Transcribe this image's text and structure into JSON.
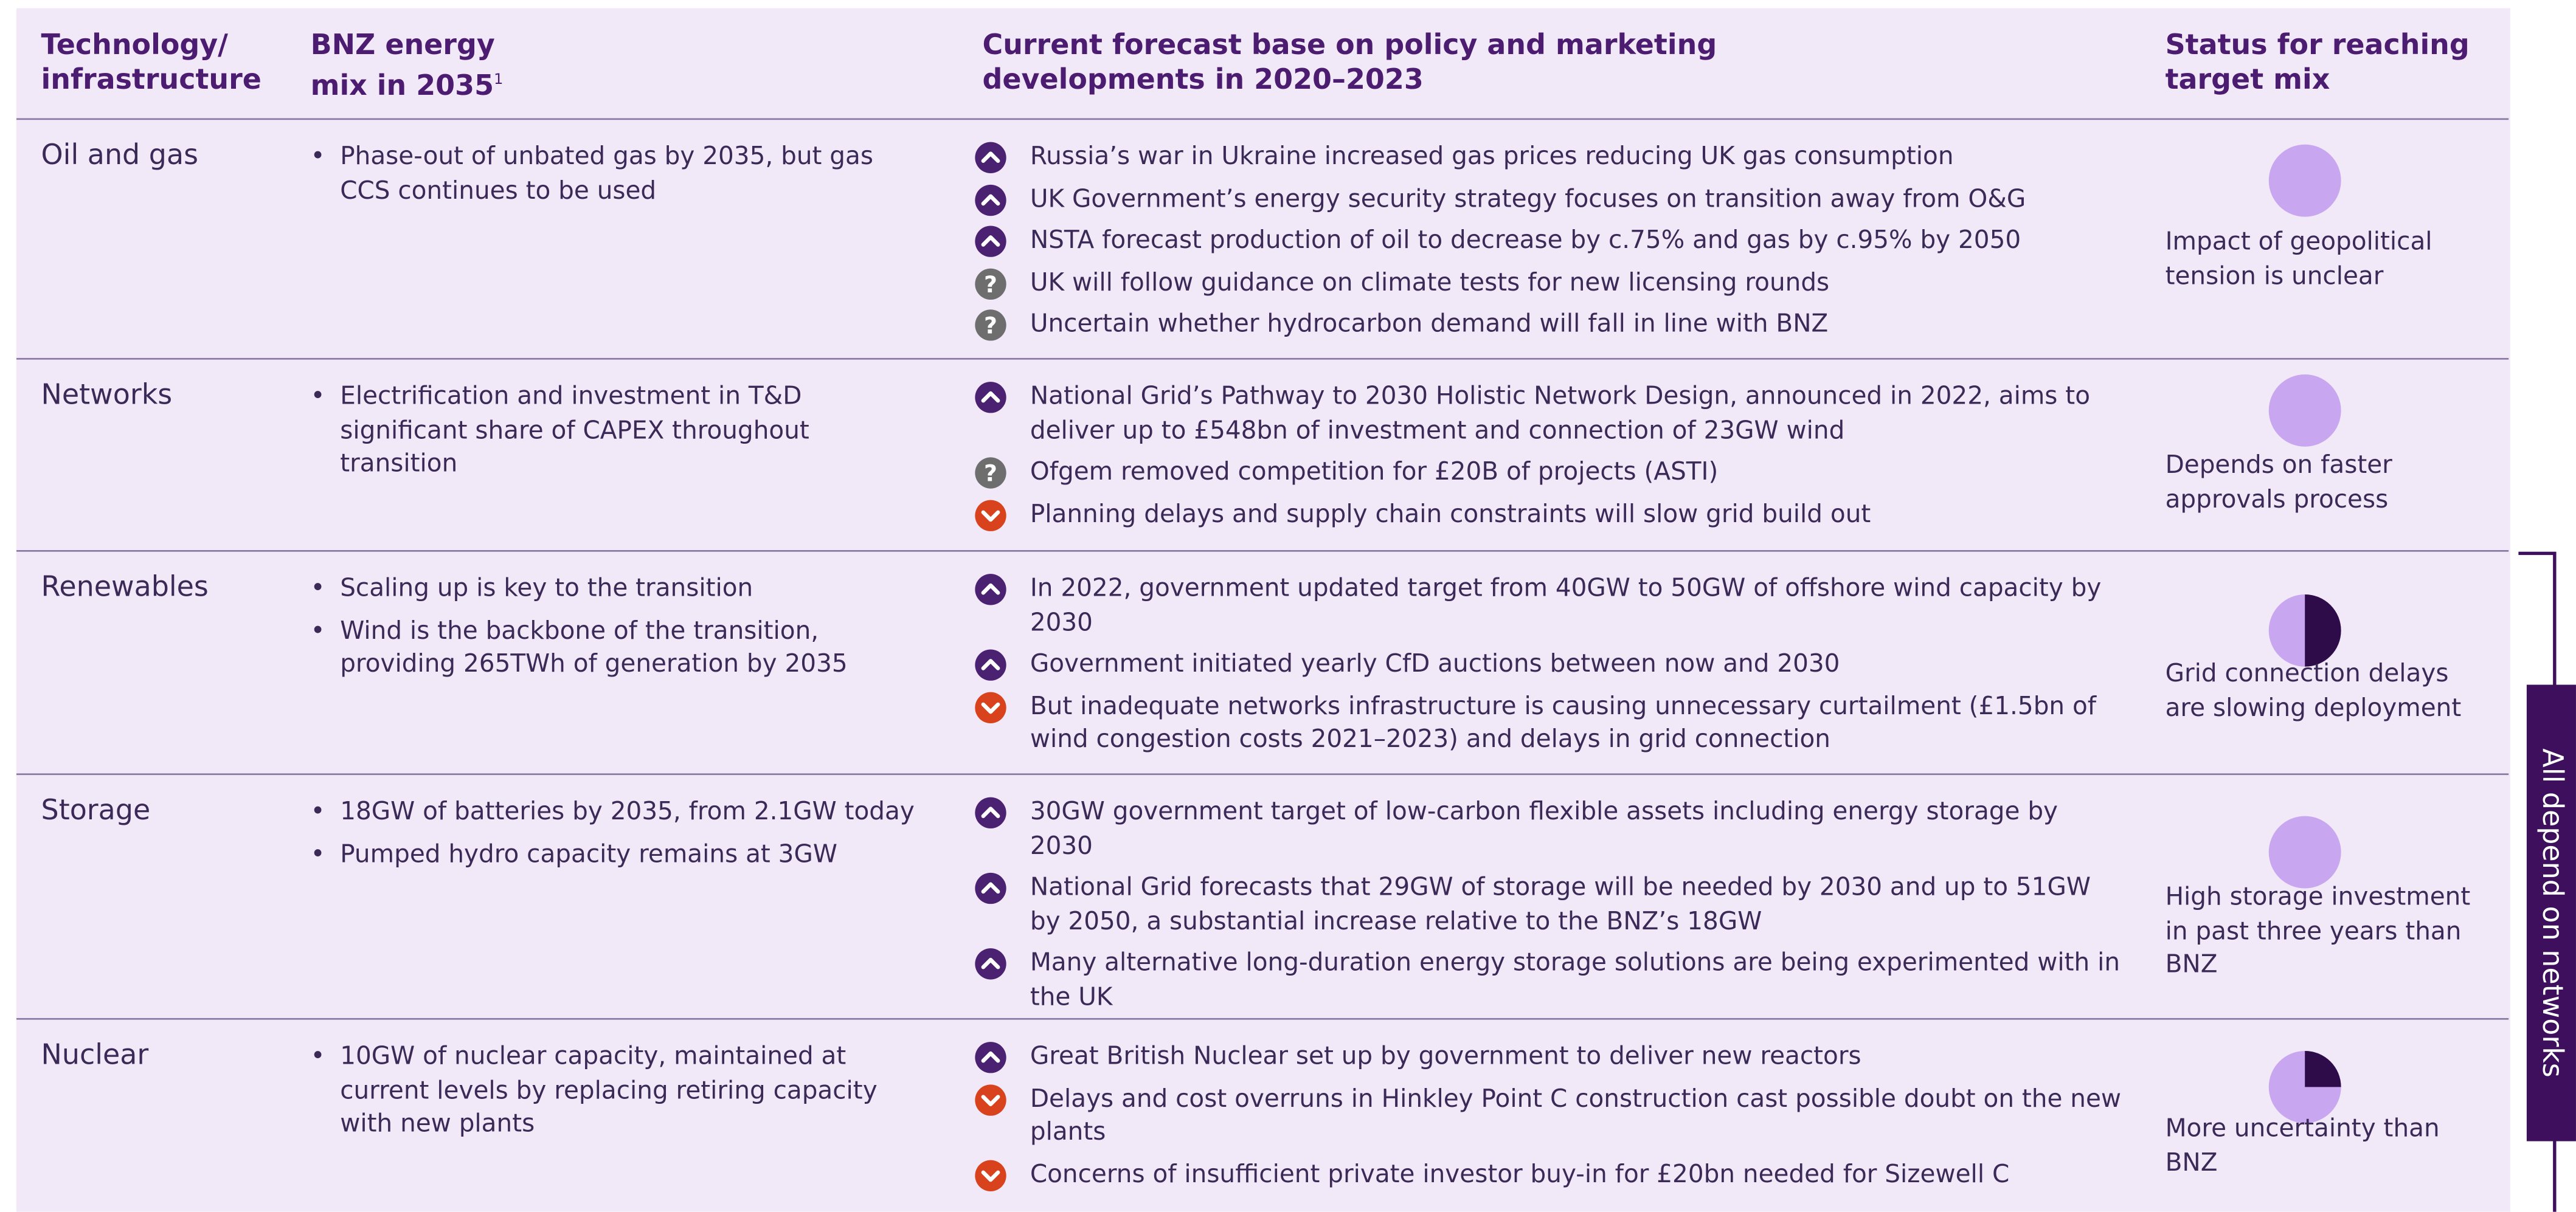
{
  "header": {
    "tech": "Technology/ infrastructure",
    "bnz": "BNZ energy mix in 2035",
    "bnz_note": "1",
    "forecast": "Current forecast base on policy and marketing developments in 2020–2023",
    "status": "Status for reaching target mix"
  },
  "rows": [
    {
      "tech": "Oil and gas",
      "bnz": [
        "Phase-out of unbated gas by 2035, but gas CCS continues to be used"
      ],
      "forecast": [
        {
          "icon": "up",
          "text": "Russia’s war in Ukraine increased gas prices reducing UK gas consumption"
        },
        {
          "icon": "up",
          "text": "UK Government’s energy security strategy focuses on transition away from O&G"
        },
        {
          "icon": "up",
          "text": "NSTA forecast production of oil to decrease by c.75% and gas by c.95% by 2050"
        },
        {
          "icon": "question",
          "text": "UK will follow guidance on climate tests for new licensing rounds"
        },
        {
          "icon": "question",
          "text": "Uncertain whether hydrocarbon demand will fall in line with BNZ"
        }
      ],
      "status": {
        "text": "Impact of geopolitical tension is unclear",
        "dark_fraction": 0
      }
    },
    {
      "tech": "Networks",
      "bnz": [
        "Electrification and investment in T&D significant share of CAPEX throughout transition"
      ],
      "forecast": [
        {
          "icon": "up",
          "text": "National Grid’s Pathway to 2030 Holistic Network Design, announced in 2022, aims to deliver up to £548bn of investment and connection of 23GW wind"
        },
        {
          "icon": "question",
          "text": "Ofgem removed competition for £20B of projects (ASTI)"
        },
        {
          "icon": "down",
          "text": "Planning delays and supply chain constraints will slow grid build out"
        }
      ],
      "status": {
        "text": "Depends on faster approvals process",
        "dark_fraction": 0
      }
    },
    {
      "tech": "Renewables",
      "bnz": [
        "Scaling up is key to the transition",
        "Wind is the backbone of the transition, providing 265TWh of generation by 2035"
      ],
      "forecast": [
        {
          "icon": "up",
          "text": "In 2022, government updated target from 40GW to 50GW of offshore wind capacity by 2030"
        },
        {
          "icon": "up",
          "text": "Government initiated yearly CfD auctions between now and 2030"
        },
        {
          "icon": "down",
          "text": "But inadequate networks infrastructure is causing unnecessary curtailment (£1.5bn of wind congestion costs 2021–2023) and delays in grid connection"
        }
      ],
      "status": {
        "text": "Grid connection delays are slowing deployment",
        "dark_fraction": 0.5
      }
    },
    {
      "tech": "Storage",
      "bnz": [
        "18GW of batteries by 2035, from 2.1GW today",
        "Pumped hydro capacity remains at 3GW"
      ],
      "forecast": [
        {
          "icon": "up",
          "text": "30GW government target of low-carbon flexible assets including energy storage by 2030"
        },
        {
          "icon": "up",
          "text": "National Grid forecasts that 29GW of storage will be needed by 2030 and up to 51GW by 2050, a substantial increase relative to the BNZ’s 18GW"
        },
        {
          "icon": "up",
          "text": "Many alternative long-duration energy storage solutions are being experimented with in the UK"
        }
      ],
      "status": {
        "text": "High storage investment in past three years than BNZ",
        "dark_fraction": 0
      }
    },
    {
      "tech": "Nuclear",
      "bnz": [
        "10GW of nuclear capacity, maintained at current levels by replacing retiring capacity with new plants"
      ],
      "forecast": [
        {
          "icon": "up",
          "text": "Great British Nuclear set up by government to deliver new reactors"
        },
        {
          "icon": "down",
          "text": "Delays and cost overruns in Hinkley Point C construction cast possible doubt on the new plants"
        },
        {
          "icon": "down",
          "text": "Concerns of insufficient private investor buy-in for £20bn needed for Sizewell C"
        }
      ],
      "status": {
        "text": "More uncertainty than BNZ",
        "dark_fraction": 0.25
      }
    }
  ],
  "side_label": "All depend on networks"
}
